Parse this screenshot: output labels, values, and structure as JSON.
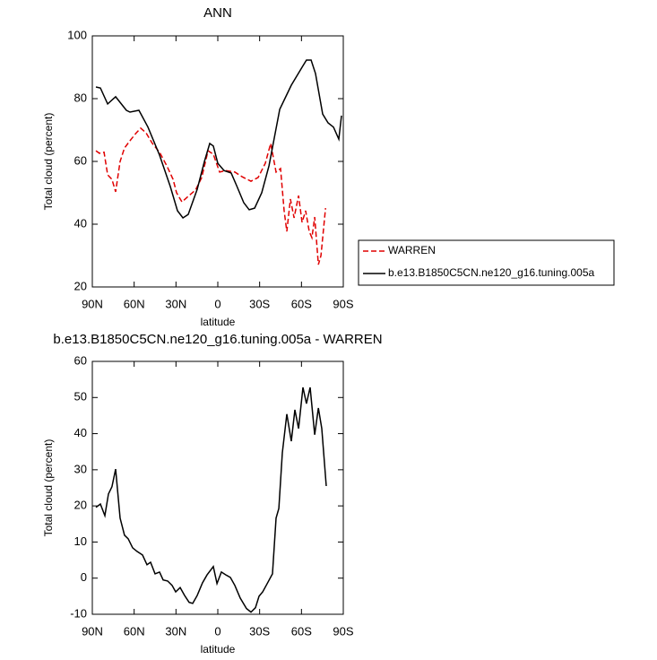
{
  "chart_data": [
    {
      "type": "line",
      "title": "ANN",
      "x_label": "latitude",
      "y_label": "Total cloud (percent)",
      "xlim": [
        90,
        -90
      ],
      "xticks": [
        {
          "value": 90,
          "label": "90N"
        },
        {
          "value": 60,
          "label": "60N"
        },
        {
          "value": 30,
          "label": "30N"
        },
        0,
        {
          "value": -30,
          "label": "30S"
        },
        {
          "value": -60,
          "label": "60S"
        },
        {
          "value": -90,
          "label": "90S"
        }
      ],
      "ylim": [
        20,
        100
      ],
      "yticks": [
        20,
        40,
        60,
        80,
        100
      ],
      "legend": "right",
      "series": [
        {
          "name": "WARREN",
          "color": "#e00000",
          "style": "dashed",
          "x": [
            87.4,
            84.9,
            81.6,
            79,
            75.9,
            73.3,
            70.1,
            66.9,
            62.4,
            58.5,
            55.3,
            51.4,
            46.9,
            41.8,
            36.6,
            32.1,
            29.6,
            25.7,
            21.2,
            16,
            11.5,
            7,
            3.2,
            -1.3,
            -5.8,
            -12.2,
            -17.4,
            -23.8,
            -28.9,
            -34.1,
            -37.9,
            -41.8,
            -45,
            -47.6,
            -49.5,
            -52.1,
            -54.7,
            -57.9,
            -60.4,
            -63,
            -65.6,
            -67.5,
            -69.5,
            -72.1,
            -74,
            -77.3
          ],
          "values": [
            63.4,
            62.6,
            62.9,
            55.7,
            54.3,
            50.3,
            60,
            64.3,
            66.9,
            69.1,
            70.6,
            69.1,
            65.7,
            62.9,
            58.6,
            54.3,
            50,
            47.1,
            48.9,
            50.9,
            54.9,
            63.4,
            62.3,
            56.6,
            57.1,
            56.6,
            55.1,
            53.7,
            54.9,
            59.4,
            65.7,
            56.6,
            57.7,
            44.3,
            37.7,
            48,
            42,
            49.1,
            40.6,
            44.3,
            37.7,
            35.7,
            42.3,
            27.1,
            30,
            45.1
          ]
        },
        {
          "name": "b.e13.B1850C5CN.ne120_g16.tuning.005a",
          "color": "#000000",
          "style": "solid",
          "x": [
            87.4,
            84.2,
            79,
            73.3,
            65.6,
            63,
            56.6,
            50.1,
            41.8,
            34.1,
            28.9,
            25,
            21.2,
            14.8,
            9.6,
            5.8,
            3.2,
            0,
            -4.5,
            -9.6,
            -13.5,
            -18.6,
            -22.5,
            -26.4,
            -31.5,
            -36.7,
            -44.4,
            -52.7,
            -60.4,
            -63.6,
            -66.9,
            -70.1,
            -75.2,
            -79.1,
            -83,
            -86.8,
            -88.7
          ],
          "values": [
            83.7,
            83.4,
            78.3,
            80.6,
            76.3,
            75.7,
            76.3,
            70.9,
            62,
            52,
            44.3,
            42,
            43.1,
            51.1,
            60,
            65.7,
            64.9,
            59.4,
            57.1,
            56.3,
            52.3,
            46.9,
            44.6,
            45.1,
            50,
            58.6,
            76.6,
            84.3,
            90,
            92.3,
            92.3,
            88,
            75.1,
            72.3,
            70.9,
            67.1,
            74.6
          ]
        }
      ]
    },
    {
      "type": "line",
      "title": "b.e13.B1850C5CN.ne120_g16.tuning.005a - WARREN",
      "x_label": "latitude",
      "y_label": "Total cloud (percent)",
      "xlim": [
        90,
        -90
      ],
      "xticks": [
        {
          "value": 90,
          "label": "90N"
        },
        {
          "value": 60,
          "label": "60N"
        },
        {
          "value": 30,
          "label": "30N"
        },
        0,
        {
          "value": -30,
          "label": "30S"
        },
        {
          "value": -60,
          "label": "60S"
        },
        {
          "value": -90,
          "label": "90S"
        }
      ],
      "ylim": [
        -10,
        60
      ],
      "yticks": [
        -10,
        0,
        10,
        20,
        30,
        40,
        50,
        60
      ],
      "series": [
        {
          "color": "#000000",
          "style": "solid",
          "x": [
            87.4,
            84.2,
            81,
            78.4,
            75.9,
            73.3,
            70.1,
            66.9,
            64.3,
            61.1,
            57.9,
            54,
            50.8,
            48.2,
            45,
            41.8,
            39.2,
            36,
            32.8,
            30.2,
            27,
            23.8,
            20.6,
            18,
            14.8,
            11,
            7.7,
            3.2,
            0.6,
            -2.6,
            -5.8,
            -9,
            -12.2,
            -16.1,
            -20.6,
            -23.8,
            -27,
            -29.6,
            -32.2,
            -35.4,
            -39.2,
            -41.8,
            -43.8,
            -46.3,
            -49.5,
            -52.7,
            -55.3,
            -57.9,
            -61.1,
            -63.6,
            -66.2,
            -69.5,
            -72.1,
            -74.6,
            -77.8
          ],
          "values": [
            19.6,
            20.5,
            17.3,
            23.3,
            25.3,
            30.2,
            16.6,
            11.9,
            10.9,
            8.4,
            7.4,
            6.4,
            3.7,
            4.4,
            1.2,
            1.7,
            -0.5,
            -0.8,
            -2,
            -3.8,
            -2.6,
            -4.8,
            -6.7,
            -7,
            -4.8,
            -1.3,
            0.9,
            3.2,
            -1.5,
            1.7,
            0.9,
            0.2,
            -2,
            -5.5,
            -8.4,
            -9.4,
            -8.2,
            -5,
            -3.8,
            -1.5,
            1.2,
            16.6,
            19.3,
            34.7,
            45.4,
            37.9,
            46.6,
            41.4,
            52.8,
            48.3,
            52.8,
            39.7,
            47.1,
            41.4,
            25.5
          ]
        }
      ]
    }
  ]
}
